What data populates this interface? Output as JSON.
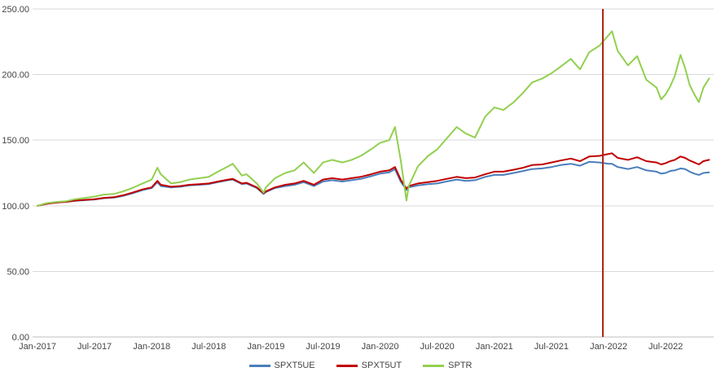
{
  "chart_data": {
    "type": "line",
    "title": "",
    "xlabel": "",
    "ylabel": "",
    "grid": "horizontal",
    "y_axis": {
      "min": 0,
      "max": 250,
      "step": 50,
      "ticks": [
        {
          "value": 0,
          "label": "0.00"
        },
        {
          "value": 50,
          "label": "50.00"
        },
        {
          "value": 100,
          "label": "100.00"
        },
        {
          "value": 150,
          "label": "150.00"
        },
        {
          "value": 200,
          "label": "200.00"
        },
        {
          "value": 250,
          "label": "250.00"
        }
      ]
    },
    "x_axis": {
      "min": 2017.0,
      "max": 2022.92,
      "ticks": [
        {
          "value": 2017.0,
          "label": "Jan-2017"
        },
        {
          "value": 2017.5,
          "label": "Jul-2017"
        },
        {
          "value": 2018.0,
          "label": "Jan-2018"
        },
        {
          "value": 2018.5,
          "label": "Jul-2018"
        },
        {
          "value": 2019.0,
          "label": "Jan-2019"
        },
        {
          "value": 2019.5,
          "label": "Jul-2019"
        },
        {
          "value": 2020.0,
          "label": "Jan-2020"
        },
        {
          "value": 2020.5,
          "label": "Jul-2020"
        },
        {
          "value": 2021.0,
          "label": "Jan-2021"
        },
        {
          "value": 2021.5,
          "label": "Jul-2021"
        },
        {
          "value": 2022.0,
          "label": "Jan-2022"
        },
        {
          "value": 2022.5,
          "label": "Jul-2022"
        }
      ]
    },
    "x": [
      2017.0,
      2017.08,
      2017.17,
      2017.25,
      2017.33,
      2017.42,
      2017.5,
      2017.58,
      2017.67,
      2017.75,
      2017.83,
      2017.92,
      2018.0,
      2018.05,
      2018.08,
      2018.17,
      2018.25,
      2018.33,
      2018.42,
      2018.5,
      2018.58,
      2018.67,
      2018.71,
      2018.79,
      2018.83,
      2018.92,
      2018.98,
      2019.0,
      2019.08,
      2019.17,
      2019.25,
      2019.33,
      2019.42,
      2019.5,
      2019.58,
      2019.67,
      2019.75,
      2019.83,
      2019.92,
      2020.0,
      2020.08,
      2020.13,
      2020.18,
      2020.23,
      2020.25,
      2020.33,
      2020.42,
      2020.5,
      2020.58,
      2020.67,
      2020.75,
      2020.83,
      2020.92,
      2021.0,
      2021.08,
      2021.17,
      2021.25,
      2021.33,
      2021.42,
      2021.5,
      2021.58,
      2021.67,
      2021.75,
      2021.83,
      2021.92,
      2022.0,
      2022.03,
      2022.08,
      2022.17,
      2022.25,
      2022.33,
      2022.42,
      2022.46,
      2022.5,
      2022.54,
      2022.58,
      2022.63,
      2022.67,
      2022.71,
      2022.75,
      2022.79,
      2022.83,
      2022.88
    ],
    "series": [
      {
        "name": "SPXT5UE",
        "color": "#4a7ebb",
        "values": [
          100,
          101.5,
          102.5,
          103,
          103.8,
          104.3,
          104.8,
          105.8,
          106.2,
          107.5,
          109.5,
          112,
          113.5,
          118,
          115,
          114,
          114.5,
          115.5,
          116,
          116.5,
          118,
          119.5,
          120,
          116.5,
          117,
          113.5,
          109,
          110.5,
          113.5,
          115,
          116,
          118,
          115,
          118.5,
          119.5,
          118.5,
          119.5,
          120.5,
          122.5,
          124.5,
          125.5,
          128,
          118.5,
          112,
          114,
          115.5,
          116.5,
          117,
          118.5,
          120,
          119,
          119.5,
          122,
          123.5,
          123.5,
          125,
          126.5,
          128,
          128.5,
          129.5,
          131,
          132,
          130.5,
          133.5,
          133,
          132,
          132,
          129.5,
          128,
          129.5,
          127,
          126,
          124.5,
          125,
          126.5,
          127,
          128.5,
          128,
          126,
          124.5,
          123.5,
          125,
          125.5
        ]
      },
      {
        "name": "SPXT5UT",
        "color": "#c00000",
        "values": [
          100,
          101.5,
          102.5,
          103,
          104,
          104.5,
          105,
          106,
          106.5,
          108,
          110,
          112.5,
          114,
          119,
          116,
          114.5,
          115,
          116,
          116.5,
          117,
          118.5,
          120,
          120.5,
          117,
          117.5,
          114,
          109.5,
          111,
          114,
          116,
          117,
          119,
          116,
          120,
          121,
          120,
          121,
          122,
          124,
          126,
          127,
          129.5,
          120,
          113,
          115,
          117,
          118,
          119,
          120.5,
          122,
          121,
          121.5,
          124,
          126,
          126,
          127.5,
          129,
          131,
          131.5,
          133,
          134.5,
          136,
          134,
          137.5,
          138,
          139.5,
          140,
          136.5,
          135,
          137,
          134,
          133,
          131.5,
          132.5,
          134,
          135,
          137.5,
          136.5,
          134.5,
          133,
          131.5,
          134,
          135
        ]
      },
      {
        "name": "SPTR",
        "color": "#92d050",
        "values": [
          100,
          102,
          103,
          103.5,
          105,
          106,
          107,
          108.5,
          109,
          111,
          113.5,
          117,
          120,
          129,
          124,
          117,
          118,
          120,
          121,
          122,
          126,
          130,
          132,
          123,
          124,
          117,
          110,
          114,
          121,
          125,
          127,
          133,
          125,
          133,
          135,
          133,
          135,
          138,
          143,
          148,
          150,
          160,
          135,
          104,
          115,
          130,
          138,
          143,
          151,
          160,
          155,
          152,
          168,
          175,
          173,
          179,
          186,
          194,
          197,
          201,
          206,
          212,
          204,
          217,
          222,
          230,
          233,
          218,
          207,
          214,
          196,
          190,
          181,
          185,
          191,
          199,
          215,
          205,
          192,
          185,
          179,
          190,
          197
        ]
      }
    ],
    "annotations": {
      "vline": {
        "x": 2021.95,
        "color": "#b02418"
      }
    },
    "legend": {
      "position": "bottom",
      "entries": [
        "SPXT5UE",
        "SPXT5UT",
        "SPTR"
      ]
    }
  },
  "colors": {
    "gridline": "#d9d9d9",
    "axis_line": "#bfbfbf",
    "tick_text": "#444444",
    "background": "#ffffff"
  }
}
